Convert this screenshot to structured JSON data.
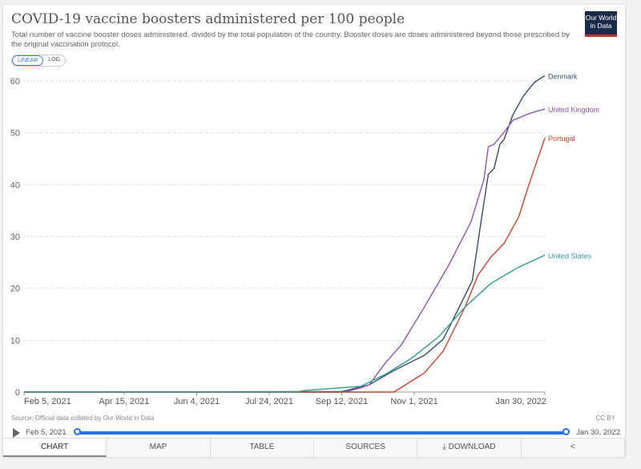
{
  "header": {
    "title": "COVID-19 vaccine boosters administered per 100 people",
    "subtitle": "Total number of vaccine booster doses administered, divided by the total population of the country. Booster doses are doses administered beyond those prescribed by the original vaccination protocol.",
    "logo": "Our World in Data"
  },
  "scale_toggle": {
    "linear": "LINEAR",
    "log": "LOG"
  },
  "footer": {
    "source": "Source: Official data collated by Our World in Data",
    "license": "CC BY"
  },
  "timeline": {
    "start": "Feb 5, 2021",
    "end": "Jan 30, 2022"
  },
  "tabs": [
    {
      "label": "CHART"
    },
    {
      "label": "MAP"
    },
    {
      "label": "TABLE"
    },
    {
      "label": "SOURCES"
    },
    {
      "label": "⤓ DOWNLOAD"
    },
    {
      "label": "<"
    }
  ],
  "chart_data": {
    "type": "line",
    "title": "COVID-19 vaccine boosters administered per 100 people",
    "xlabel": "",
    "ylabel": "",
    "xlim": [
      "2021-02-05",
      "2022-01-30"
    ],
    "ylim": [
      0,
      60
    ],
    "yticks": [
      0,
      10,
      20,
      30,
      40,
      50,
      60
    ],
    "xticks": [
      {
        "date": "2021-02-05",
        "label": "Feb 5, 2021"
      },
      {
        "date": "2021-04-15",
        "label": "Apr 15, 2021"
      },
      {
        "date": "2021-06-04",
        "label": "Jun 4, 2021"
      },
      {
        "date": "2021-07-24",
        "label": "Jul 24, 2021"
      },
      {
        "date": "2021-09-12",
        "label": "Sep 12, 2021"
      },
      {
        "date": "2021-11-01",
        "label": "Nov 1, 2021"
      },
      {
        "date": "2022-01-30",
        "label": "Jan 30, 2022"
      }
    ],
    "grid": true,
    "legend": "inline-right",
    "series": [
      {
        "name": "Denmark",
        "color": "#3c4d66",
        "points": [
          [
            "2021-02-05",
            0
          ],
          [
            "2021-09-12",
            0.1
          ],
          [
            "2021-10-01",
            1.4
          ],
          [
            "2021-10-17",
            4
          ],
          [
            "2021-11-08",
            7.1
          ],
          [
            "2021-11-21",
            10.2
          ],
          [
            "2021-12-02",
            16.4
          ],
          [
            "2021-12-11",
            21.5
          ],
          [
            "2021-12-17",
            32.8
          ],
          [
            "2021-12-22",
            42
          ],
          [
            "2021-12-26",
            43.1
          ],
          [
            "2021-12-30",
            47.8
          ],
          [
            "2022-01-02",
            48.8
          ],
          [
            "2022-01-08",
            53.5
          ],
          [
            "2022-01-15",
            57
          ],
          [
            "2022-01-23",
            59.8
          ],
          [
            "2022-01-30",
            61
          ]
        ]
      },
      {
        "name": "United Kingdom",
        "color": "#8e52b0",
        "points": [
          [
            "2021-02-05",
            0
          ],
          [
            "2021-09-14",
            0
          ],
          [
            "2021-09-25",
            0.8
          ],
          [
            "2021-10-01",
            1.4
          ],
          [
            "2021-10-12",
            5.6
          ],
          [
            "2021-10-23",
            9.1
          ],
          [
            "2021-11-08",
            16.4
          ],
          [
            "2021-11-25",
            24.6
          ],
          [
            "2021-12-10",
            32.8
          ],
          [
            "2021-12-19",
            41
          ],
          [
            "2021-12-22",
            47.3
          ],
          [
            "2021-12-26",
            47.8
          ],
          [
            "2022-01-01",
            49.8
          ],
          [
            "2022-01-08",
            52.4
          ],
          [
            "2022-01-19",
            53.7
          ],
          [
            "2022-01-30",
            54.6
          ]
        ]
      },
      {
        "name": "Portugal",
        "color": "#c4452c",
        "points": [
          [
            "2021-02-05",
            0
          ],
          [
            "2021-10-18",
            0
          ],
          [
            "2021-11-08",
            3.7
          ],
          [
            "2021-11-21",
            7.9
          ],
          [
            "2021-12-06",
            16.4
          ],
          [
            "2021-12-15",
            22.6
          ],
          [
            "2021-12-24",
            26.1
          ],
          [
            "2022-01-02",
            28.7
          ],
          [
            "2022-01-12",
            33.8
          ],
          [
            "2022-01-19",
            40
          ],
          [
            "2022-01-30",
            49
          ]
        ]
      },
      {
        "name": "United States",
        "color": "#359a92",
        "points": [
          [
            "2021-02-05",
            0
          ],
          [
            "2021-08-12",
            0
          ],
          [
            "2021-08-17",
            0.3
          ],
          [
            "2021-09-25",
            1.1
          ],
          [
            "2021-10-12",
            3.4
          ],
          [
            "2021-10-30",
            6.5
          ],
          [
            "2021-11-18",
            10.7
          ],
          [
            "2021-12-06",
            16.4
          ],
          [
            "2021-12-24",
            21
          ],
          [
            "2022-01-12",
            24.1
          ],
          [
            "2022-01-30",
            26.4
          ]
        ]
      }
    ]
  }
}
